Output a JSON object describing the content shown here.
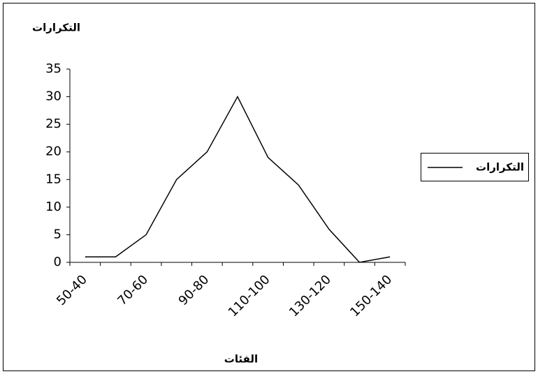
{
  "chart_data": {
    "type": "line",
    "y_label": "التكرارات",
    "x_label": "الفئات",
    "categories": [
      "50-40",
      null,
      "70-60",
      null,
      "90-80",
      null,
      "110-100",
      null,
      "130-120",
      null,
      "150-140"
    ],
    "series": [
      {
        "name": "التكرارات",
        "color": "#000000",
        "values": [
          1,
          1,
          5,
          15,
          20,
          30,
          19,
          14,
          6,
          0,
          1
        ]
      }
    ],
    "ylim": [
      0,
      35
    ],
    "yticks": [
      0,
      5,
      10,
      15,
      20,
      25,
      30,
      35
    ],
    "legend": "right"
  }
}
